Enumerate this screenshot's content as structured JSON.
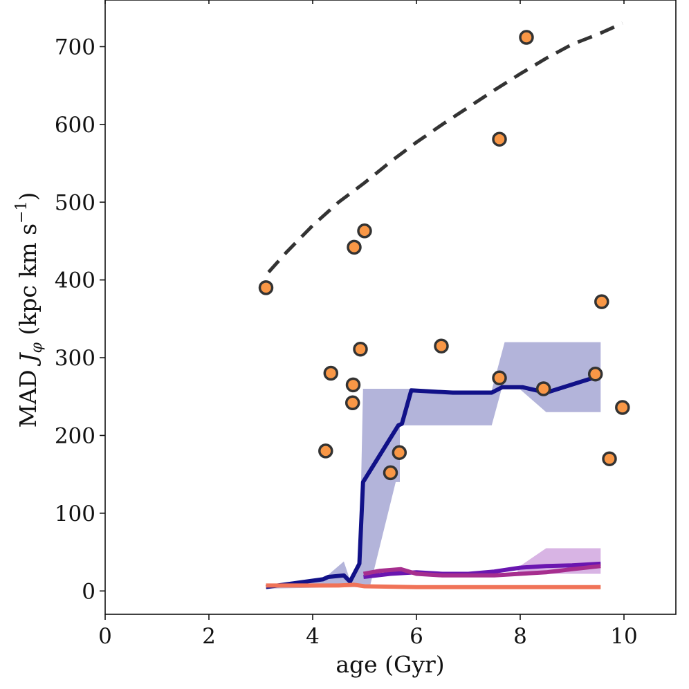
{
  "chart_data": {
    "type": "line",
    "xlabel": "age (Gyr)",
    "ylabel": "MAD J_φ (kpc km s⁻¹)",
    "ylabel_parts": {
      "pre": "MAD ",
      "j": "J",
      "sub": "φ",
      "post": " (kpc km s",
      "sup": "−1",
      "end": ")"
    },
    "xlim": [
      0,
      11
    ],
    "ylim": [
      -30,
      760
    ],
    "xticks": [
      0,
      2,
      4,
      6,
      8,
      10
    ],
    "xtick_labels": [
      "0",
      "2",
      "4",
      "6",
      "8",
      "10"
    ],
    "yticks": [
      0,
      100,
      200,
      300,
      400,
      500,
      600,
      700
    ],
    "ytick_labels": [
      "0",
      "100",
      "200",
      "300",
      "400",
      "500",
      "600",
      "700"
    ],
    "grid": false,
    "colors": {
      "scatter_fill": "#f99746",
      "scatter_edge": "#333333",
      "dashed": "#333333",
      "navy": "#111188",
      "navy_band": "#b3b4da",
      "purple": "#6a16b0",
      "magenta": "#a62e8e",
      "purple_band": "#d8b4e4",
      "salmon": "#f07358"
    },
    "series": [
      {
        "kind": "scatter",
        "points": [
          [
            3.1,
            390
          ],
          [
            4.25,
            180
          ],
          [
            4.35,
            280
          ],
          [
            4.8,
            442
          ],
          [
            4.78,
            265
          ],
          [
            4.77,
            242
          ],
          [
            4.92,
            311
          ],
          [
            5.0,
            463
          ],
          [
            5.5,
            152
          ],
          [
            5.67,
            178
          ],
          [
            6.48,
            315
          ],
          [
            7.6,
            581
          ],
          [
            7.6,
            274
          ],
          [
            8.12,
            712
          ],
          [
            8.45,
            260
          ],
          [
            9.45,
            279
          ],
          [
            9.57,
            372
          ],
          [
            9.72,
            170
          ],
          [
            9.97,
            236
          ]
        ]
      },
      {
        "kind": "dashed",
        "points": [
          [
            3.15,
            410
          ],
          [
            3.5,
            436
          ],
          [
            4.0,
            470
          ],
          [
            4.5,
            500
          ],
          [
            5.0,
            525
          ],
          [
            5.5,
            552
          ],
          [
            6.0,
            577
          ],
          [
            6.5,
            600
          ],
          [
            7.0,
            622
          ],
          [
            7.5,
            644
          ],
          [
            8.0,
            665
          ],
          [
            8.5,
            685
          ],
          [
            9.0,
            703
          ],
          [
            9.5,
            716
          ],
          [
            9.97,
            730
          ]
        ]
      },
      {
        "kind": "band",
        "upper": [
          [
            3.1,
            8
          ],
          [
            4.2,
            15
          ],
          [
            4.6,
            38
          ],
          [
            4.72,
            14
          ],
          [
            4.9,
            32
          ],
          [
            4.97,
            260
          ],
          [
            5.85,
            260
          ],
          [
            5.9,
            258
          ],
          [
            7.45,
            258
          ],
          [
            7.7,
            320
          ],
          [
            9.55,
            320
          ]
        ],
        "lower": [
          [
            9.55,
            230
          ],
          [
            8.5,
            230
          ],
          [
            7.95,
            262
          ],
          [
            7.65,
            262
          ],
          [
            7.45,
            213
          ],
          [
            5.95,
            213
          ],
          [
            5.68,
            213
          ],
          [
            5.68,
            140
          ],
          [
            5.6,
            140
          ],
          [
            5.1,
            5
          ],
          [
            4.97,
            5
          ],
          [
            4.7,
            5
          ],
          [
            3.1,
            3
          ]
        ]
      },
      {
        "kind": "line",
        "color_key": "navy",
        "points": [
          [
            3.1,
            5
          ],
          [
            4.2,
            15
          ],
          [
            4.3,
            18
          ],
          [
            4.6,
            20
          ],
          [
            4.72,
            12
          ],
          [
            4.9,
            35
          ],
          [
            4.97,
            140
          ],
          [
            5.65,
            213
          ],
          [
            5.72,
            215
          ],
          [
            5.9,
            258
          ],
          [
            6.7,
            255
          ],
          [
            7.45,
            255
          ],
          [
            7.65,
            262
          ],
          [
            8.05,
            262
          ],
          [
            8.5,
            255
          ],
          [
            9.55,
            277
          ]
        ]
      },
      {
        "kind": "band",
        "upper": [
          [
            7.95,
            30
          ],
          [
            8.5,
            55
          ],
          [
            9.55,
            55
          ]
        ],
        "lower": [
          [
            9.55,
            22
          ],
          [
            8.5,
            22
          ],
          [
            7.95,
            22
          ]
        ]
      },
      {
        "kind": "line",
        "color_key": "purple",
        "points": [
          [
            4.98,
            18
          ],
          [
            5.5,
            22
          ],
          [
            6.0,
            24
          ],
          [
            6.5,
            22
          ],
          [
            7.0,
            22
          ],
          [
            7.5,
            25
          ],
          [
            8.0,
            30
          ],
          [
            8.5,
            32
          ],
          [
            9.0,
            33
          ],
          [
            9.55,
            35
          ]
        ]
      },
      {
        "kind": "line",
        "color_key": "magenta",
        "points": [
          [
            4.98,
            22
          ],
          [
            5.3,
            26
          ],
          [
            5.7,
            28
          ],
          [
            6.0,
            22
          ],
          [
            6.5,
            20
          ],
          [
            7.0,
            20
          ],
          [
            7.5,
            20
          ],
          [
            8.0,
            22
          ],
          [
            8.5,
            24
          ],
          [
            9.0,
            28
          ],
          [
            9.55,
            32
          ]
        ]
      },
      {
        "kind": "line",
        "color_key": "salmon",
        "points": [
          [
            3.1,
            7
          ],
          [
            4.0,
            7
          ],
          [
            4.5,
            7
          ],
          [
            4.8,
            8
          ],
          [
            5.0,
            6
          ],
          [
            6.0,
            5
          ],
          [
            7.0,
            5
          ],
          [
            8.0,
            5
          ],
          [
            9.0,
            5
          ],
          [
            9.55,
            5
          ]
        ]
      }
    ]
  }
}
